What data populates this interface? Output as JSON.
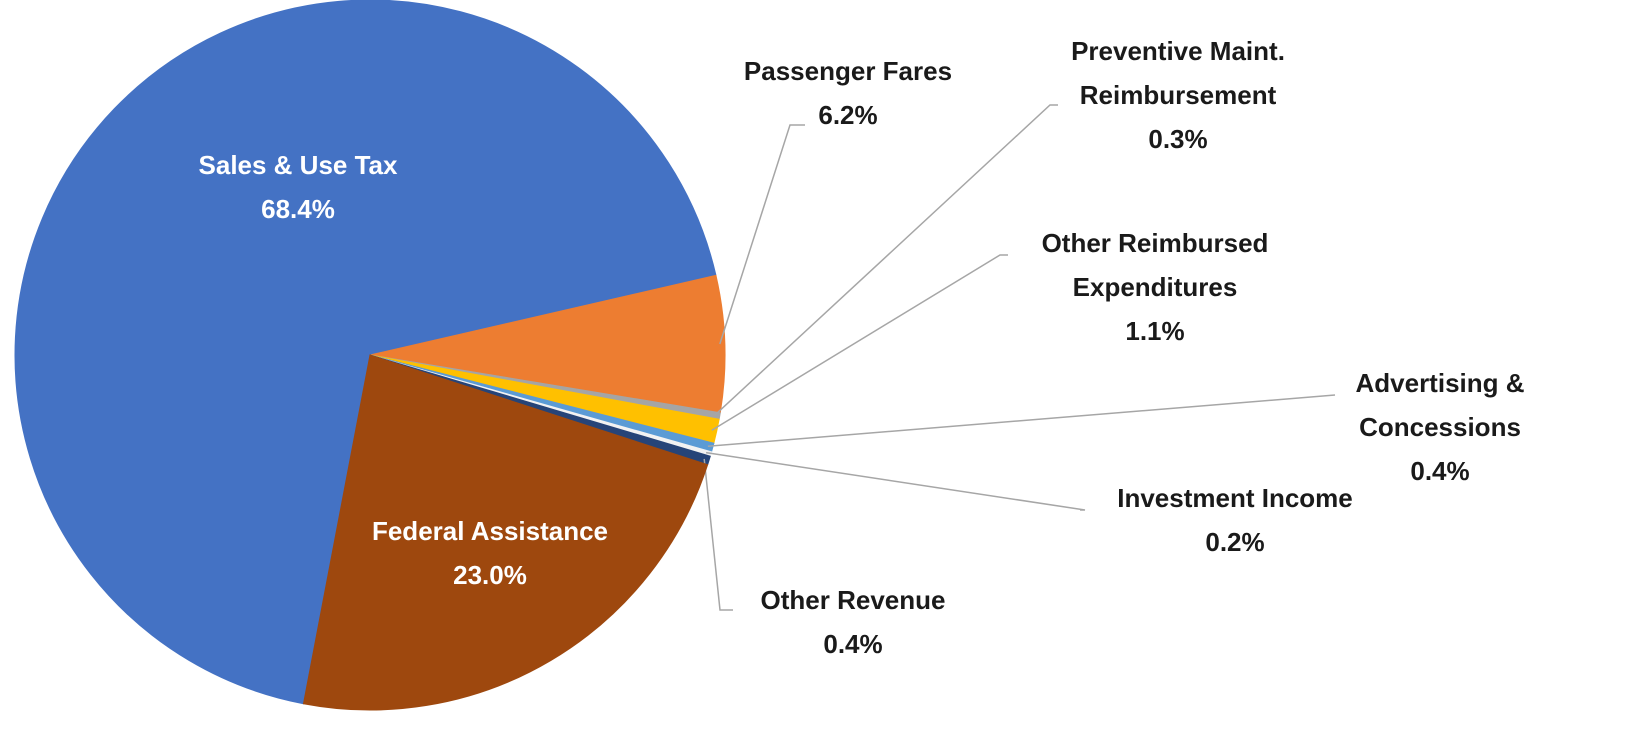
{
  "chart_data": {
    "type": "pie",
    "categories": [
      "Sales & Use Tax",
      "Passenger Fares",
      "Preventive Maint. Reimbursement",
      "Other Reimbursed Expenditures",
      "Advertising & Concessions",
      "Investment Income",
      "Other Revenue",
      "Federal Assistance"
    ],
    "values": [
      68.4,
      6.2,
      0.3,
      1.1,
      0.4,
      0.2,
      0.4,
      23.0
    ],
    "value_labels": [
      "68.4%",
      "6.2%",
      "0.3%",
      "1.1%",
      "0.4%",
      "0.2%",
      "0.4%",
      "23.0%"
    ],
    "colors": [
      "#4472c4",
      "#ed7d31",
      "#a5a5a5",
      "#ffc000",
      "#5b9bd5",
      "#f2f2f2",
      "#264478",
      "#9e480e"
    ]
  }
}
